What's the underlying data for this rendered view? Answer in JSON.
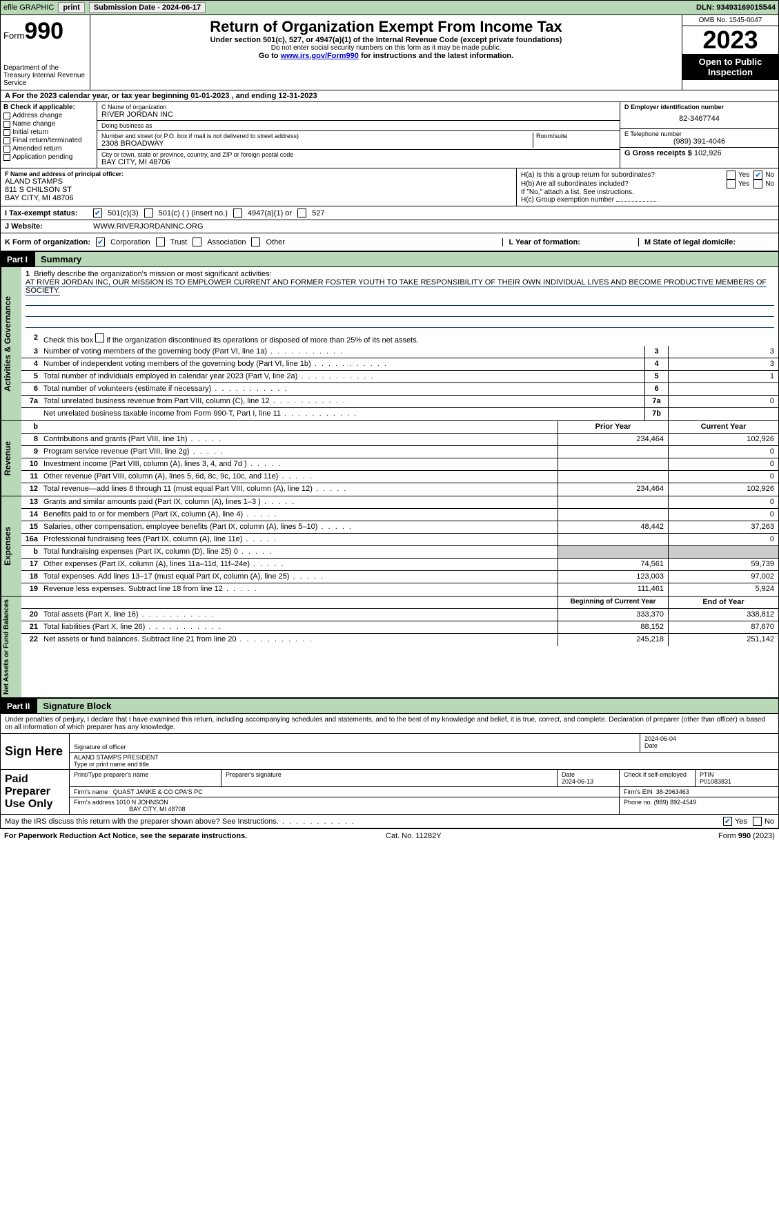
{
  "topbar": {
    "efile": "efile GRAPHIC",
    "print": "print",
    "sub_label": "Submission Date - 2024-06-17",
    "dln": "DLN: 93493169015544"
  },
  "header": {
    "form_word": "Form",
    "form_no": "990",
    "dept": "Department of the Treasury\nInternal Revenue Service",
    "title": "Return of Organization Exempt From Income Tax",
    "sub": "Under section 501(c), 527, or 4947(a)(1) of the Internal Revenue Code (except private foundations)",
    "note": "Do not enter social security numbers on this form as it may be made public.",
    "goto_pre": "Go to ",
    "goto_link": "www.irs.gov/Form990",
    "goto_post": " for instructions and the latest information.",
    "omb": "OMB No. 1545-0047",
    "year": "2023",
    "open": "Open to Public Inspection"
  },
  "row_a": "A For the 2023 calendar year, or tax year beginning 01-01-2023   , and ending 12-31-2023",
  "col_b": {
    "label": "B Check if applicable:",
    "opts": [
      "Address change",
      "Name change",
      "Initial return",
      "Final return/terminated",
      "Amended return",
      "Application pending"
    ]
  },
  "col_c": {
    "name_lbl": "C Name of organization",
    "name": "RIVER JORDAN INC",
    "dba_lbl": "Doing business as",
    "dba": "",
    "addr_lbl": "Number and street (or P.O. box if mail is not delivered to street address)",
    "room_lbl": "Room/suite",
    "addr": "2308 BROADWAY",
    "city_lbl": "City or town, state or province, country, and ZIP or foreign postal code",
    "city": "BAY CITY, MI  48706"
  },
  "col_de": {
    "d_lbl": "D Employer identification number",
    "d_val": "82-3467744",
    "e_lbl": "E Telephone number",
    "e_val": "(989) 391-4046",
    "g_lbl": "G Gross receipts $",
    "g_val": "102,926"
  },
  "col_f": {
    "lbl": "F  Name and address of principal officer:",
    "line1": "ALAND STAMPS",
    "line2": "811 S CHILSON ST",
    "line3": "BAY CITY, MI  48706"
  },
  "col_h": {
    "ha": "H(a)  Is this a group return for subordinates?",
    "hb": "H(b)  Are all subordinates included?",
    "hb_note": "If \"No,\" attach a list. See instructions.",
    "hc": "H(c)  Group exemption number",
    "yes": "Yes",
    "no": "No"
  },
  "row_i": {
    "lead": "I   Tax-exempt status:",
    "o1": "501(c)(3)",
    "o2": "501(c) (   ) (insert no.)",
    "o3": "4947(a)(1) or",
    "o4": "527"
  },
  "row_j": {
    "lead": "J   Website:",
    "val": "WWW.RIVERJORDANINC.ORG"
  },
  "row_k": {
    "lead": "K Form of organization:",
    "opts": [
      "Corporation",
      "Trust",
      "Association",
      "Other"
    ],
    "l_lbl": "L Year of formation:",
    "m_lbl": "M State of legal domicile:"
  },
  "part1": {
    "tab": "Part I",
    "title": "Summary"
  },
  "mission": {
    "num": "1",
    "lbl": "Briefly describe the organization's mission or most significant activities:",
    "text": "AT RIVER JORDAN INC, OUR MISSION IS TO EMPLOWER CURRENT AND FORMER FOSTER YOUTH TO TAKE RESPONSIBILITY OF THEIR OWN INDIVIDUAL LIVES AND BECOME PRODUCTIVE MEMBERS OF SOCIETY."
  },
  "gov": {
    "l2": "Check this box       if the organization discontinued its operations or disposed of more than 25% of its net assets.",
    "l3": "Number of voting members of the governing body (Part VI, line 1a)",
    "l4": "Number of independent voting members of the governing body (Part VI, line 1b)",
    "l5": "Total number of individuals employed in calendar year 2023 (Part V, line 2a)",
    "l6": "Total number of volunteers (estimate if necessary)",
    "l7a": "Total unrelated business revenue from Part VIII, column (C), line 12",
    "l7b": "Net unrelated business taxable income from Form 990-T, Part I, line 11",
    "v3": "3",
    "v4": "3",
    "v5": "1",
    "v6": "",
    "v7a": "0",
    "v7b": ""
  },
  "rev_hdr": {
    "b": "b",
    "prior": "Prior Year",
    "curr": "Current Year"
  },
  "rev": [
    {
      "n": "8",
      "t": "Contributions and grants (Part VIII, line 1h)",
      "p": "234,464",
      "c": "102,926"
    },
    {
      "n": "9",
      "t": "Program service revenue (Part VIII, line 2g)",
      "p": "",
      "c": "0"
    },
    {
      "n": "10",
      "t": "Investment income (Part VIII, column (A), lines 3, 4, and 7d )",
      "p": "",
      "c": "0"
    },
    {
      "n": "11",
      "t": "Other revenue (Part VIII, column (A), lines 5, 6d, 8c, 9c, 10c, and 11e)",
      "p": "",
      "c": "0"
    },
    {
      "n": "12",
      "t": "Total revenue—add lines 8 through 11 (must equal Part VIII, column (A), line 12)",
      "p": "234,464",
      "c": "102,926"
    }
  ],
  "exp": [
    {
      "n": "13",
      "t": "Grants and similar amounts paid (Part IX, column (A), lines 1–3 )",
      "p": "",
      "c": "0"
    },
    {
      "n": "14",
      "t": "Benefits paid to or for members (Part IX, column (A), line 4)",
      "p": "",
      "c": "0"
    },
    {
      "n": "15",
      "t": "Salaries, other compensation, employee benefits (Part IX, column (A), lines 5–10)",
      "p": "48,442",
      "c": "37,263"
    },
    {
      "n": "16a",
      "t": "Professional fundraising fees (Part IX, column (A), line 11e)",
      "p": "",
      "c": "0"
    },
    {
      "n": "b",
      "t": "Total fundraising expenses (Part IX, column (D), line 25) 0",
      "p": "SHADE",
      "c": "SHADE"
    },
    {
      "n": "17",
      "t": "Other expenses (Part IX, column (A), lines 11a–11d, 11f–24e)",
      "p": "74,561",
      "c": "59,739"
    },
    {
      "n": "18",
      "t": "Total expenses. Add lines 13–17 (must equal Part IX, column (A), line 25)",
      "p": "123,003",
      "c": "97,002"
    },
    {
      "n": "19",
      "t": "Revenue less expenses. Subtract line 18 from line 12",
      "p": "111,461",
      "c": "5,924"
    }
  ],
  "na_hdr": {
    "p": "Beginning of Current Year",
    "c": "End of Year"
  },
  "na": [
    {
      "n": "20",
      "t": "Total assets (Part X, line 16)",
      "p": "333,370",
      "c": "338,812"
    },
    {
      "n": "21",
      "t": "Total liabilities (Part X, line 26)",
      "p": "88,152",
      "c": "87,670"
    },
    {
      "n": "22",
      "t": "Net assets or fund balances. Subtract line 21 from line 20",
      "p": "245,218",
      "c": "251,142"
    }
  ],
  "part2": {
    "tab": "Part II",
    "title": "Signature Block"
  },
  "penalty": "Under penalties of perjury, I declare that I have examined this return, including accompanying schedules and statements, and to the best of my knowledge and belief, it is true, correct, and complete. Declaration of preparer (other than officer) is based on all information of which preparer has any knowledge.",
  "sign": {
    "lead": "Sign Here",
    "sig_lbl": "Signature of officer",
    "name": "ALAND STAMPS  PRESIDENT",
    "name_lbl": "Type or print name and title",
    "date_lbl": "Date",
    "date": "2024-06-04"
  },
  "prep": {
    "lead": "Paid Preparer Use Only",
    "pname_lbl": "Print/Type preparer's name",
    "psig_lbl": "Preparer's signature",
    "pdate_lbl": "Date",
    "pdate": "2024-06-13",
    "chk_lbl": "Check        if self-employed",
    "ptin_lbl": "PTIN",
    "ptin": "P01083831",
    "firm_lbl": "Firm's name",
    "firm": "QUAST JANKE & CO CPA'S PC",
    "ein_lbl": "Firm's EIN",
    "ein": "38-2963463",
    "addr_lbl": "Firm's address",
    "addr1": "1010 N JOHNSON",
    "addr2": "BAY CITY, MI  48708",
    "phone_lbl": "Phone no.",
    "phone": "(989) 892-4549"
  },
  "discuss": "May the IRS discuss this return with the preparer shown above? See Instructions.",
  "footer": {
    "l": "For Paperwork Reduction Act Notice, see the separate instructions.",
    "m": "Cat. No. 11282Y",
    "r": "Form 990 (2023)"
  },
  "vlabels": {
    "gov": "Activities & Governance",
    "rev": "Revenue",
    "exp": "Expenses",
    "na": "Net Assets or Fund Balances"
  }
}
